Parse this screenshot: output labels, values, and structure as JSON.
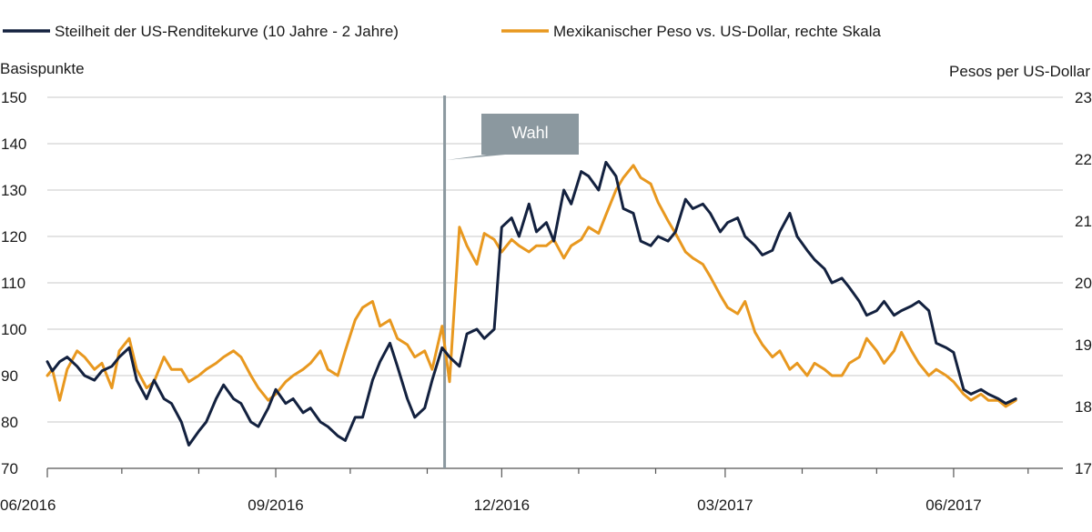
{
  "chart_data": {
    "type": "line",
    "title": "",
    "legend": {
      "placement": "top-left",
      "entries": [
        {
          "name": "Steilheit der US-Renditekurve (10 Jahre - 2 Jahre)",
          "color": "#13213f"
        },
        {
          "name": "Mexikanischer Peso vs. US-Dollar, rechte Skala",
          "color": "#e8981f"
        }
      ]
    },
    "y_left": {
      "label": "Basispunkte",
      "range": [
        70,
        150
      ],
      "ticks": [
        "70",
        "80",
        "90",
        "100",
        "110",
        "120",
        "130",
        "140",
        "150"
      ]
    },
    "y_right": {
      "label": "Pesos per US-Dollar",
      "range": [
        17,
        23
      ],
      "ticks": [
        "17",
        "18",
        "19",
        "20",
        "21",
        "22",
        "23"
      ]
    },
    "x_axis": {
      "start": "2016-06-01",
      "end": "2017-07-15",
      "labels": [
        {
          "date": "2016-06-01",
          "text": "06/2016"
        },
        {
          "date": "2016-09-01",
          "text": "09/2016"
        },
        {
          "date": "2016-12-01",
          "text": "12/2016"
        },
        {
          "date": "2017-03-01",
          "text": "03/2017"
        },
        {
          "date": "2017-06-01",
          "text": "06/2017"
        }
      ],
      "minor_ticks": [
        "2016-07-01",
        "2016-08-01",
        "2016-10-01",
        "2016-11-01",
        "2017-01-01",
        "2017-02-01",
        "2017-04-01",
        "2017-05-01",
        "2017-07-01"
      ]
    },
    "grid": true,
    "annotation": {
      "text": "Wahl",
      "date": "2016-11-08"
    },
    "series": [
      {
        "name": "Steilheit der US-Renditekurve (10 Jahre - 2 Jahre)",
        "color": "#13213f",
        "axis": "left",
        "points": [
          [
            "2016-06-01",
            93
          ],
          [
            "2016-06-03",
            91
          ],
          [
            "2016-06-06",
            93
          ],
          [
            "2016-06-09",
            94
          ],
          [
            "2016-06-13",
            92
          ],
          [
            "2016-06-16",
            90
          ],
          [
            "2016-06-20",
            89
          ],
          [
            "2016-06-23",
            91
          ],
          [
            "2016-06-27",
            92
          ],
          [
            "2016-06-30",
            94
          ],
          [
            "2016-07-04",
            96
          ],
          [
            "2016-07-07",
            89
          ],
          [
            "2016-07-11",
            85
          ],
          [
            "2016-07-14",
            89
          ],
          [
            "2016-07-18",
            85
          ],
          [
            "2016-07-21",
            84
          ],
          [
            "2016-07-25",
            80
          ],
          [
            "2016-07-28",
            75
          ],
          [
            "2016-08-01",
            78
          ],
          [
            "2016-08-04",
            80
          ],
          [
            "2016-08-08",
            85
          ],
          [
            "2016-08-11",
            88
          ],
          [
            "2016-08-15",
            85
          ],
          [
            "2016-08-18",
            84
          ],
          [
            "2016-08-22",
            80
          ],
          [
            "2016-08-25",
            79
          ],
          [
            "2016-08-29",
            83
          ],
          [
            "2016-09-01",
            87
          ],
          [
            "2016-09-05",
            84
          ],
          [
            "2016-09-08",
            85
          ],
          [
            "2016-09-12",
            82
          ],
          [
            "2016-09-15",
            83
          ],
          [
            "2016-09-19",
            80
          ],
          [
            "2016-09-22",
            79
          ],
          [
            "2016-09-26",
            77
          ],
          [
            "2016-09-29",
            76
          ],
          [
            "2016-10-03",
            81
          ],
          [
            "2016-10-06",
            81
          ],
          [
            "2016-10-10",
            89
          ],
          [
            "2016-10-13",
            93
          ],
          [
            "2016-10-17",
            97
          ],
          [
            "2016-10-20",
            92
          ],
          [
            "2016-10-24",
            85
          ],
          [
            "2016-10-27",
            81
          ],
          [
            "2016-10-31",
            83
          ],
          [
            "2016-11-03",
            89
          ],
          [
            "2016-11-07",
            96
          ],
          [
            "2016-11-10",
            94
          ],
          [
            "2016-11-14",
            92
          ],
          [
            "2016-11-17",
            99
          ],
          [
            "2016-11-21",
            100
          ],
          [
            "2016-11-24",
            98
          ],
          [
            "2016-11-28",
            100
          ],
          [
            "2016-12-01",
            122
          ],
          [
            "2016-12-05",
            124
          ],
          [
            "2016-12-08",
            120
          ],
          [
            "2016-12-12",
            127
          ],
          [
            "2016-12-15",
            121
          ],
          [
            "2016-12-19",
            123
          ],
          [
            "2016-12-22",
            119
          ],
          [
            "2016-12-26",
            130
          ],
          [
            "2016-12-29",
            127
          ],
          [
            "2017-01-02",
            134
          ],
          [
            "2017-01-05",
            133
          ],
          [
            "2017-01-09",
            130
          ],
          [
            "2017-01-12",
            136
          ],
          [
            "2017-01-16",
            133
          ],
          [
            "2017-01-19",
            126
          ],
          [
            "2017-01-23",
            125
          ],
          [
            "2017-01-26",
            119
          ],
          [
            "2017-01-30",
            118
          ],
          [
            "2017-02-02",
            120
          ],
          [
            "2017-02-06",
            119
          ],
          [
            "2017-02-09",
            121
          ],
          [
            "2017-02-13",
            128
          ],
          [
            "2017-02-16",
            126
          ],
          [
            "2017-02-20",
            127
          ],
          [
            "2017-02-23",
            125
          ],
          [
            "2017-02-27",
            121
          ],
          [
            "2017-03-02",
            123
          ],
          [
            "2017-03-06",
            124
          ],
          [
            "2017-03-09",
            120
          ],
          [
            "2017-03-13",
            118
          ],
          [
            "2017-03-16",
            116
          ],
          [
            "2017-03-20",
            117
          ],
          [
            "2017-03-23",
            121
          ],
          [
            "2017-03-27",
            125
          ],
          [
            "2017-03-30",
            120
          ],
          [
            "2017-04-03",
            117
          ],
          [
            "2017-04-06",
            115
          ],
          [
            "2017-04-10",
            113
          ],
          [
            "2017-04-13",
            110
          ],
          [
            "2017-04-17",
            111
          ],
          [
            "2017-04-20",
            109
          ],
          [
            "2017-04-24",
            106
          ],
          [
            "2017-04-27",
            103
          ],
          [
            "2017-05-01",
            104
          ],
          [
            "2017-05-04",
            106
          ],
          [
            "2017-05-08",
            103
          ],
          [
            "2017-05-11",
            104
          ],
          [
            "2017-05-15",
            105
          ],
          [
            "2017-05-18",
            106
          ],
          [
            "2017-05-22",
            104
          ],
          [
            "2017-05-25",
            97
          ],
          [
            "2017-05-29",
            96
          ],
          [
            "2017-06-01",
            95
          ],
          [
            "2017-06-05",
            87
          ],
          [
            "2017-06-08",
            86
          ],
          [
            "2017-06-12",
            87
          ],
          [
            "2017-06-15",
            86
          ],
          [
            "2017-06-19",
            85
          ],
          [
            "2017-06-22",
            84
          ],
          [
            "2017-06-26",
            85
          ]
        ]
      },
      {
        "name": "Mexikanischer Peso vs. US-Dollar, rechte Skala",
        "color": "#e8981f",
        "axis": "right",
        "points": [
          [
            "2016-06-01",
            18.5
          ],
          [
            "2016-06-03",
            18.6
          ],
          [
            "2016-06-06",
            18.1
          ],
          [
            "2016-06-09",
            18.6
          ],
          [
            "2016-06-13",
            18.9
          ],
          [
            "2016-06-16",
            18.8
          ],
          [
            "2016-06-20",
            18.6
          ],
          [
            "2016-06-23",
            18.7
          ],
          [
            "2016-06-27",
            18.3
          ],
          [
            "2016-06-30",
            18.9
          ],
          [
            "2016-07-04",
            19.1
          ],
          [
            "2016-07-07",
            18.6
          ],
          [
            "2016-07-11",
            18.3
          ],
          [
            "2016-07-14",
            18.4
          ],
          [
            "2016-07-18",
            18.8
          ],
          [
            "2016-07-21",
            18.6
          ],
          [
            "2016-07-25",
            18.6
          ],
          [
            "2016-07-28",
            18.4
          ],
          [
            "2016-08-01",
            18.5
          ],
          [
            "2016-08-04",
            18.6
          ],
          [
            "2016-08-08",
            18.7
          ],
          [
            "2016-08-11",
            18.8
          ],
          [
            "2016-08-15",
            18.9
          ],
          [
            "2016-08-18",
            18.8
          ],
          [
            "2016-08-22",
            18.5
          ],
          [
            "2016-08-25",
            18.3
          ],
          [
            "2016-08-29",
            18.1
          ],
          [
            "2016-09-01",
            18.2
          ],
          [
            "2016-09-05",
            18.4
          ],
          [
            "2016-09-08",
            18.5
          ],
          [
            "2016-09-12",
            18.6
          ],
          [
            "2016-09-15",
            18.7
          ],
          [
            "2016-09-19",
            18.9
          ],
          [
            "2016-09-22",
            18.6
          ],
          [
            "2016-09-26",
            18.5
          ],
          [
            "2016-09-29",
            18.9
          ],
          [
            "2016-10-03",
            19.4
          ],
          [
            "2016-10-06",
            19.6
          ],
          [
            "2016-10-10",
            19.7
          ],
          [
            "2016-10-13",
            19.3
          ],
          [
            "2016-10-17",
            19.4
          ],
          [
            "2016-10-20",
            19.1
          ],
          [
            "2016-10-24",
            19.0
          ],
          [
            "2016-10-27",
            18.8
          ],
          [
            "2016-10-31",
            18.9
          ],
          [
            "2016-11-03",
            18.6
          ],
          [
            "2016-11-07",
            19.3
          ],
          [
            "2016-11-10",
            18.4
          ],
          [
            "2016-11-14",
            20.9
          ],
          [
            "2016-11-17",
            20.6
          ],
          [
            "2016-11-21",
            20.3
          ],
          [
            "2016-11-24",
            20.8
          ],
          [
            "2016-11-28",
            20.7
          ],
          [
            "2016-12-01",
            20.5
          ],
          [
            "2016-12-05",
            20.7
          ],
          [
            "2016-12-08",
            20.6
          ],
          [
            "2016-12-12",
            20.5
          ],
          [
            "2016-12-15",
            20.6
          ],
          [
            "2016-12-19",
            20.6
          ],
          [
            "2016-12-22",
            20.7
          ],
          [
            "2016-12-26",
            20.4
          ],
          [
            "2016-12-29",
            20.6
          ],
          [
            "2017-01-02",
            20.7
          ],
          [
            "2017-01-05",
            20.9
          ],
          [
            "2017-01-09",
            20.8
          ],
          [
            "2017-01-12",
            21.1
          ],
          [
            "2017-01-16",
            21.5
          ],
          [
            "2017-01-19",
            21.7
          ],
          [
            "2017-01-23",
            21.9
          ],
          [
            "2017-01-26",
            21.7
          ],
          [
            "2017-01-30",
            21.6
          ],
          [
            "2017-02-02",
            21.3
          ],
          [
            "2017-02-06",
            21.0
          ],
          [
            "2017-02-09",
            20.8
          ],
          [
            "2017-02-13",
            20.5
          ],
          [
            "2017-02-16",
            20.4
          ],
          [
            "2017-02-20",
            20.3
          ],
          [
            "2017-02-23",
            20.1
          ],
          [
            "2017-02-27",
            19.8
          ],
          [
            "2017-03-02",
            19.6
          ],
          [
            "2017-03-06",
            19.5
          ],
          [
            "2017-03-09",
            19.7
          ],
          [
            "2017-03-13",
            19.2
          ],
          [
            "2017-03-16",
            19.0
          ],
          [
            "2017-03-20",
            18.8
          ],
          [
            "2017-03-23",
            18.9
          ],
          [
            "2017-03-27",
            18.6
          ],
          [
            "2017-03-30",
            18.7
          ],
          [
            "2017-04-03",
            18.5
          ],
          [
            "2017-04-06",
            18.7
          ],
          [
            "2017-04-10",
            18.6
          ],
          [
            "2017-04-13",
            18.5
          ],
          [
            "2017-04-17",
            18.5
          ],
          [
            "2017-04-20",
            18.7
          ],
          [
            "2017-04-24",
            18.8
          ],
          [
            "2017-04-27",
            19.1
          ],
          [
            "2017-05-01",
            18.9
          ],
          [
            "2017-05-04",
            18.7
          ],
          [
            "2017-05-08",
            18.9
          ],
          [
            "2017-05-11",
            19.2
          ],
          [
            "2017-05-15",
            18.9
          ],
          [
            "2017-05-18",
            18.7
          ],
          [
            "2017-05-22",
            18.5
          ],
          [
            "2017-05-25",
            18.6
          ],
          [
            "2017-05-29",
            18.5
          ],
          [
            "2017-06-01",
            18.4
          ],
          [
            "2017-06-05",
            18.2
          ],
          [
            "2017-06-08",
            18.1
          ],
          [
            "2017-06-12",
            18.2
          ],
          [
            "2017-06-15",
            18.1
          ],
          [
            "2017-06-19",
            18.1
          ],
          [
            "2017-06-22",
            18.0
          ],
          [
            "2017-06-26",
            18.1
          ]
        ]
      }
    ]
  }
}
